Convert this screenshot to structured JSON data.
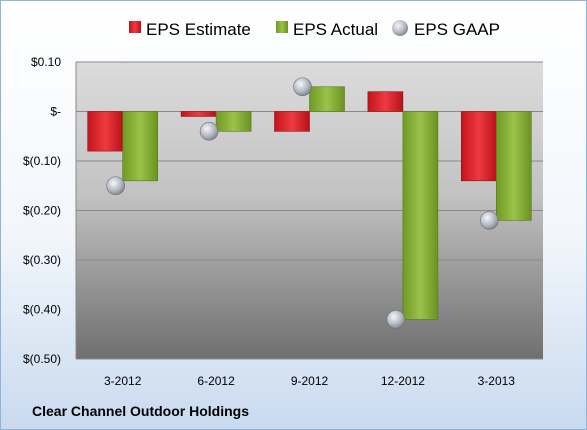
{
  "chart_data": {
    "type": "bar",
    "title": "",
    "xlabel": "",
    "ylabel": "",
    "categories": [
      "3-2012",
      "6-2012",
      "9-2012",
      "12-2012",
      "3-2013"
    ],
    "series": [
      {
        "name": "EPS Estimate",
        "kind": "bar",
        "color": "#e0202a",
        "values": [
          -0.08,
          -0.01,
          -0.04,
          0.04,
          -0.14
        ]
      },
      {
        "name": "EPS Actual",
        "kind": "bar",
        "color": "#8ab23a",
        "values": [
          -0.14,
          -0.04,
          0.05,
          -0.42,
          -0.22
        ]
      },
      {
        "name": "EPS GAAP",
        "kind": "marker",
        "color": "#b8bcc4",
        "values": [
          -0.15,
          -0.04,
          0.05,
          -0.42,
          -0.22
        ]
      }
    ],
    "ylim": [
      -0.5,
      0.1
    ],
    "yticks": [
      0.1,
      0,
      -0.1,
      -0.2,
      -0.3,
      -0.4,
      -0.5
    ],
    "ytick_labels": [
      "$0.10",
      "$-",
      "$(0.10)",
      "$(0.20)",
      "$(0.30)",
      "$(0.40)",
      "$(0.50)"
    ],
    "grid": true,
    "legend": "top"
  },
  "footer": {
    "company": "Clear Channel Outdoor Holdings"
  }
}
